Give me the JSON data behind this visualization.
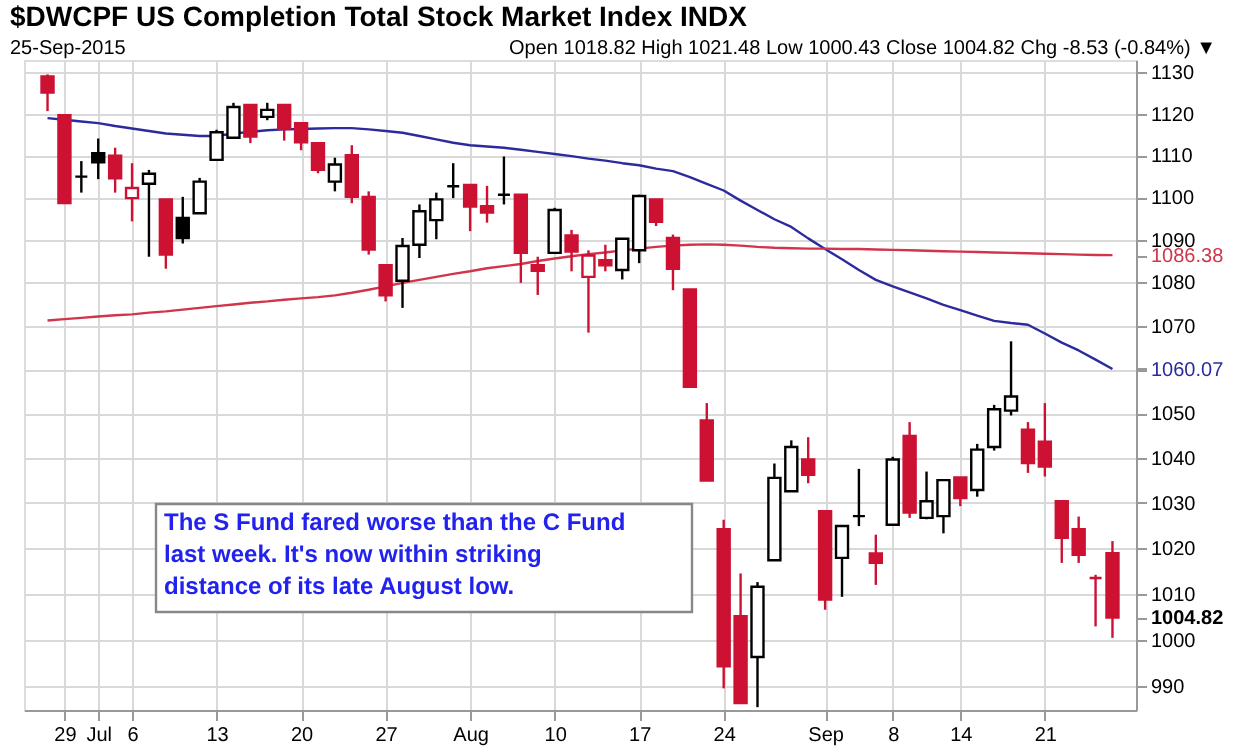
{
  "chart_data": {
    "type": "candlestick",
    "title": "$DWCPF US Completion Total Stock Market Index INDX",
    "subtitle": "25-Sep-2015",
    "categories": [
      null,
      "29",
      null,
      "Jul",
      null,
      "6",
      null,
      null,
      null,
      null,
      "13",
      null,
      null,
      null,
      null,
      "20",
      null,
      null,
      null,
      null,
      "27",
      null,
      null,
      null,
      null,
      "Aug",
      null,
      null,
      null,
      null,
      "10",
      null,
      null,
      null,
      null,
      "17",
      null,
      null,
      null,
      null,
      "24",
      null,
      null,
      null,
      null,
      null,
      "Sep",
      null,
      null,
      null,
      "8",
      null,
      null,
      null,
      "14",
      null,
      null,
      null,
      null,
      "21",
      null,
      null,
      null,
      null
    ],
    "ohlc": [
      [
        1129.0,
        1129.5,
        1120.6,
        1125.1
      ],
      [
        1119.6,
        1119.8,
        1098.5,
        1098.6
      ],
      [
        1104.9,
        1108.6,
        1101.1,
        1104.9
      ],
      [
        1110.5,
        1114.0,
        1104.3,
        1108.3
      ],
      [
        1109.9,
        1111.8,
        1101.1,
        1104.5
      ],
      [
        1099.8,
        1108.1,
        1094.3,
        1102.2
      ],
      [
        1103.2,
        1106.5,
        1086.0,
        1105.6
      ],
      [
        1099.5,
        1099.5,
        1083.2,
        1086.5
      ],
      [
        1095.1,
        1100.1,
        1089.1,
        1090.4
      ],
      [
        1096.2,
        1104.6,
        1096.2,
        1103.7
      ],
      [
        1108.9,
        1116.1,
        1108.9,
        1115.5
      ],
      [
        1114.2,
        1122.6,
        1114.2,
        1121.6
      ],
      [
        1122.1,
        1122.1,
        1112.9,
        1114.5
      ],
      [
        1119.2,
        1122.6,
        1118.4,
        1120.9
      ],
      [
        1122.1,
        1122.1,
        1113.5,
        1116.3
      ],
      [
        1117.7,
        1117.7,
        1111.2,
        1113.1
      ],
      [
        1112.9,
        1112.9,
        1105.7,
        1106.5
      ],
      [
        1103.7,
        1109.4,
        1101.4,
        1107.8
      ],
      [
        1110.0,
        1112.4,
        1098.6,
        1100.1
      ],
      [
        1100.1,
        1101.4,
        1086.5,
        1087.7
      ],
      [
        1084.0,
        1084.0,
        1075.6,
        1077.0
      ],
      [
        1080.4,
        1090.4,
        1074.1,
        1088.5
      ],
      [
        1088.8,
        1098.3,
        1085.7,
        1096.7
      ],
      [
        1094.6,
        1101.1,
        1090.1,
        1099.5
      ],
      [
        1102.6,
        1108.1,
        1099.8,
        1102.6
      ],
      [
        1102.9,
        1102.9,
        1092.0,
        1097.8
      ],
      [
        1097.9,
        1102.7,
        1094.0,
        1096.4
      ],
      [
        1100.6,
        1109.7,
        1098.3,
        1100.6
      ],
      [
        1100.6,
        1100.6,
        1079.9,
        1086.9
      ],
      [
        1084.0,
        1086.0,
        1077.1,
        1082.7
      ],
      [
        1086.9,
        1097.5,
        1086.9,
        1097.0
      ],
      [
        1091.0,
        1092.3,
        1082.6,
        1087.2
      ],
      [
        1081.3,
        1087.5,
        1068.4,
        1086.3
      ],
      [
        1085.2,
        1088.8,
        1082.6,
        1084.0
      ],
      [
        1082.9,
        1090.2,
        1080.7,
        1090.2
      ],
      [
        1087.5,
        1100.6,
        1084.5,
        1100.3
      ],
      [
        1099.5,
        1099.5,
        1093.2,
        1094.2
      ],
      [
        1090.4,
        1091.2,
        1078.2,
        1083.2
      ],
      [
        1078.4,
        1078.4,
        1056.0,
        1056.0
      ],
      [
        1048.4,
        1052.3,
        1034.9,
        1034.9
      ],
      [
        1024.1,
        1026.2,
        989.6,
        994.3
      ],
      [
        1005.1,
        1014.4,
        986.5,
        986.5
      ],
      [
        996.3,
        1012.5,
        985.6,
        1011.5
      ],
      [
        1017.3,
        1038.7,
        1017.3,
        1035.5
      ],
      [
        1032.5,
        1043.9,
        1032.5,
        1042.4
      ],
      [
        1039.6,
        1044.6,
        1034.3,
        1036.2
      ],
      [
        1028.1,
        1028.1,
        1006.5,
        1008.7
      ],
      [
        1017.8,
        1024.8,
        1009.3,
        1024.8
      ],
      [
        1027.0,
        1037.5,
        1024.8,
        1027.0
      ],
      [
        1018.8,
        1022.9,
        1011.9,
        1016.7
      ],
      [
        1025.1,
        1040.2,
        1025.1,
        1039.6
      ],
      [
        1044.9,
        1048.0,
        1026.6,
        1027.8
      ],
      [
        1026.6,
        1036.9,
        1026.3,
        1030.3
      ],
      [
        1027.0,
        1035.0,
        1023.2,
        1035.0
      ],
      [
        1035.6,
        1035.6,
        1029.2,
        1031.0
      ],
      [
        1032.8,
        1043.1,
        1031.3,
        1041.8
      ],
      [
        1042.4,
        1051.9,
        1041.6,
        1050.9
      ],
      [
        1050.6,
        1066.4,
        1049.5,
        1053.8
      ],
      [
        1046.3,
        1048.0,
        1036.6,
        1038.8
      ],
      [
        1043.6,
        1052.3,
        1035.8,
        1038.0
      ],
      [
        1030.3,
        1030.3,
        1016.7,
        1022.2
      ],
      [
        1024.1,
        1026.9,
        1016.7,
        1018.5
      ],
      [
        1013.4,
        1014.1,
        1002.9,
        1013.4
      ],
      [
        1018.82,
        1021.48,
        1000.43,
        1004.82
      ]
    ],
    "colors": [
      "#cc1133",
      "#cc1133",
      "#000000",
      "#000000",
      "#cc1133",
      "#cc1133",
      "#000000",
      "#cc1133",
      "#000000",
      "#000000",
      "#000000",
      "#000000",
      "#cc1133",
      "#000000",
      "#cc1133",
      "#cc1133",
      "#cc1133",
      "#000000",
      "#cc1133",
      "#cc1133",
      "#cc1133",
      "#000000",
      "#000000",
      "#000000",
      "#000000",
      "#cc1133",
      "#cc1133",
      "#000000",
      "#cc1133",
      "#cc1133",
      "#000000",
      "#cc1133",
      "#cc1133",
      "#cc1133",
      "#000000",
      "#000000",
      "#cc1133",
      "#cc1133",
      "#cc1133",
      "#cc1133",
      "#cc1133",
      "#cc1133",
      "#000000",
      "#000000",
      "#000000",
      "#cc1133",
      "#cc1133",
      "#000000",
      "#000000",
      "#cc1133",
      "#000000",
      "#cc1133",
      "#000000",
      "#000000",
      "#cc1133",
      "#000000",
      "#000000",
      "#000000",
      "#cc1133",
      "#cc1133",
      "#cc1133",
      "#cc1133",
      "#cc1133",
      "#cc1133"
    ],
    "series": [
      {
        "type": "line",
        "color": "#2b2b9e",
        "values": [
          1118.9,
          1118.5,
          1118.1,
          1117.7,
          1117.0,
          1116.4,
          1115.8,
          1115.2,
          1114.9,
          1114.6,
          1114.6,
          1115.2,
          1115.6,
          1116.0,
          1116.2,
          1116.3,
          1116.4,
          1116.5,
          1116.5,
          1116.2,
          1115.8,
          1115.4,
          1114.6,
          1113.8,
          1113.0,
          1112.4,
          1112.1,
          1111.8,
          1111.3,
          1110.8,
          1110.3,
          1109.8,
          1109.2,
          1108.7,
          1108.1,
          1107.6,
          1106.8,
          1106.2,
          1104.8,
          1103.2,
          1101.6,
          1099.2,
          1097.0,
          1094.8,
          1093.0,
          1090.3,
          1087.8,
          1085.4,
          1082.9,
          1080.6,
          1079.1,
          1077.7,
          1076.3,
          1074.8,
          1073.6,
          1072.3,
          1071.1,
          1070.6,
          1070.2,
          1068.2,
          1066.1,
          1064.3,
          1062.2,
          1060.07
        ]
      },
      {
        "type": "line",
        "color": "#d0354c",
        "values": [
          1071.2,
          1071.5,
          1071.8,
          1072.1,
          1072.4,
          1072.6,
          1073.0,
          1073.3,
          1073.7,
          1074.1,
          1074.5,
          1074.9,
          1075.3,
          1075.6,
          1076.0,
          1076.3,
          1076.6,
          1077.0,
          1077.6,
          1078.3,
          1079.1,
          1079.9,
          1080.6,
          1081.3,
          1082.0,
          1082.6,
          1083.3,
          1083.8,
          1084.3,
          1085.0,
          1085.6,
          1086.1,
          1086.6,
          1087.0,
          1087.5,
          1087.9,
          1088.3,
          1088.6,
          1088.8,
          1088.9,
          1088.8,
          1088.6,
          1088.3,
          1088.1,
          1088.0,
          1087.9,
          1087.9,
          1087.8,
          1087.8,
          1087.7,
          1087.6,
          1087.5,
          1087.4,
          1087.3,
          1087.2,
          1087.1,
          1087.0,
          1086.9,
          1086.8,
          1086.7,
          1086.6,
          1086.5,
          1086.4,
          1086.38
        ]
      }
    ],
    "ylim": [
      985,
      1133
    ],
    "yticks": [
      990,
      1000,
      1010,
      1020,
      1030,
      1040,
      1050,
      {
        "value": 1060,
        "label": null
      },
      1070,
      1080,
      1090,
      1100,
      1110,
      1120,
      1130,
      {
        "value": 1086.38,
        "label": "1086.38"
      },
      {
        "value": 1060.07,
        "label": "1060.07"
      },
      {
        "value": 1004.82,
        "label": "1004.82"
      }
    ],
    "log": true,
    "grid": true,
    "annotations": [
      "Open 1018.82  High 1021.48  Low 1000.43  Close 1004.82  Chg -8.53 (-0.84%) ▼",
      "The S Fund fared worse than the C Fund\nlast week. It's now within striking\ndistance of its late August low."
    ]
  }
}
